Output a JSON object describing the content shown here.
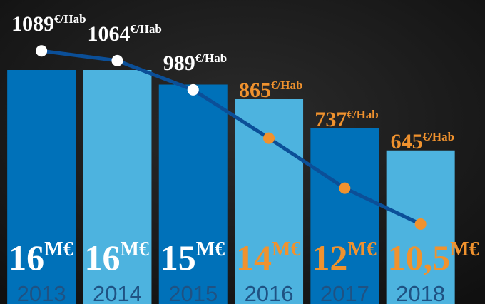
{
  "chart_data": {
    "type": "bar_line",
    "categories": [
      "2013",
      "2014",
      "2015",
      "2016",
      "2017",
      "2018"
    ],
    "series": [
      {
        "name": "M€",
        "type": "bar",
        "unit": "M€",
        "values": [
          16,
          16,
          15,
          14,
          12,
          10.5
        ],
        "value_labels": [
          "16",
          "16",
          "15",
          "14",
          "12",
          "10,5"
        ],
        "colors": [
          "#0071b9",
          "#4db3df",
          "#0071b9",
          "#4db3df",
          "#0071b9",
          "#4db3df"
        ],
        "label_colors": [
          "#ffffff",
          "#ffffff",
          "#ffffff",
          "#f0922e",
          "#f0922e",
          "#f0922e"
        ]
      },
      {
        "name": "€/Hab",
        "type": "line",
        "axis": "y2",
        "unit": "€/Hab",
        "color": "#0b4f98",
        "values": [
          1089,
          1064,
          989,
          865,
          737,
          645
        ],
        "marker_colors": [
          "#ffffff",
          "#ffffff",
          "#ffffff",
          "#f0922e",
          "#f0922e",
          "#f0922e"
        ]
      }
    ],
    "ylim": [
      0,
      20
    ],
    "y2lim": [
      440,
      1190
    ],
    "category_label_color": "#1f5283"
  }
}
